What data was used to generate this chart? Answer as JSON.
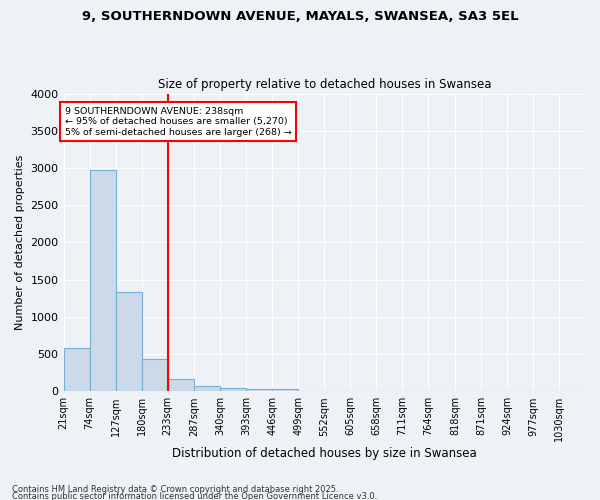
{
  "title1": "9, SOUTHERNDOWN AVENUE, MAYALS, SWANSEA, SA3 5EL",
  "title2": "Size of property relative to detached houses in Swansea",
  "xlabel": "Distribution of detached houses by size in Swansea",
  "ylabel": "Number of detached properties",
  "bar_color": "#ccd9e8",
  "bar_edge_color": "#7aafd4",
  "bins": [
    21,
    74,
    127,
    180,
    233,
    287,
    340,
    393,
    446,
    499,
    552,
    605,
    658,
    711,
    764,
    818,
    871,
    924,
    977,
    1030,
    1083
  ],
  "counts": [
    580,
    2970,
    1340,
    430,
    160,
    70,
    40,
    30,
    30,
    0,
    0,
    0,
    0,
    0,
    0,
    0,
    0,
    0,
    0,
    0
  ],
  "red_line_x": 233,
  "annotation_line1": "9 SOUTHERNDOWN AVENUE: 238sqm",
  "annotation_line2": "← 95% of detached houses are smaller (5,270)",
  "annotation_line3": "5% of semi-detached houses are larger (268) →",
  "ylim": [
    0,
    4000
  ],
  "yticks": [
    0,
    500,
    1000,
    1500,
    2000,
    2500,
    3000,
    3500,
    4000
  ],
  "background_color": "#eef2f7",
  "grid_color": "#ffffff",
  "footer1": "Contains HM Land Registry data © Crown copyright and database right 2025.",
  "footer2": "Contains public sector information licensed under the Open Government Licence v3.0."
}
